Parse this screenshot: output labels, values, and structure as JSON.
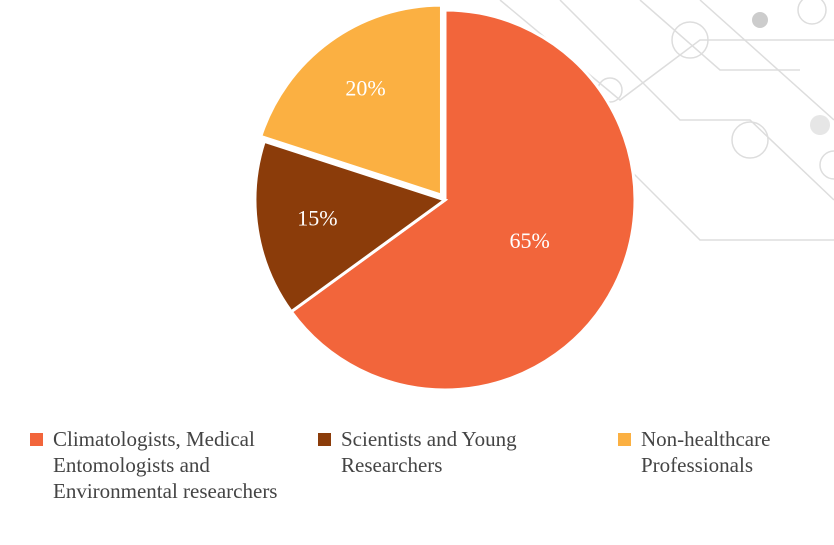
{
  "chart_data": {
    "type": "pie",
    "categories": [
      "Climatologists, Medical Entomologists and Environmental researchers",
      "Scientists and Young Researchers",
      "Non-healthcare Professionals"
    ],
    "values": [
      65,
      15,
      20
    ],
    "value_labels": [
      "65%",
      "15%",
      "20%"
    ],
    "colors": [
      "#f2653b",
      "#8b3c0a",
      "#fbb042"
    ]
  }
}
